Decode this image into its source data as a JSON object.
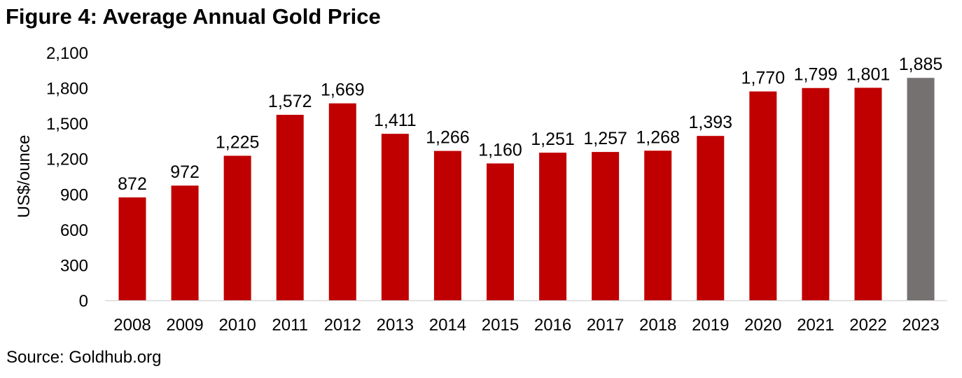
{
  "title": "Figure 4: Average Annual Gold Price",
  "source": "Source: Goldhub.org",
  "chart_data": {
    "type": "bar",
    "title": "Figure 4: Average Annual Gold Price",
    "xlabel": "",
    "ylabel": "US$/ounce",
    "ylim": [
      0,
      2100
    ],
    "yticks": [
      0,
      300,
      600,
      900,
      1200,
      1500,
      1800,
      2100
    ],
    "ytick_labels": [
      "0",
      "300",
      "600",
      "900",
      "1,200",
      "1,500",
      "1,800",
      "2,100"
    ],
    "grid": false,
    "categories": [
      "2008",
      "2009",
      "2010",
      "2011",
      "2012",
      "2013",
      "2014",
      "2015",
      "2016",
      "2017",
      "2018",
      "2019",
      "2020",
      "2021",
      "2022",
      "2023"
    ],
    "values": [
      872,
      972,
      1225,
      1572,
      1669,
      1411,
      1266,
      1160,
      1251,
      1257,
      1268,
      1393,
      1770,
      1799,
      1801,
      1885
    ],
    "data_labels": [
      "872",
      "972",
      "1,225",
      "1,572",
      "1,669",
      "1,411",
      "1,266",
      "1,160",
      "1,251",
      "1,257",
      "1,268",
      "1,393",
      "1,770",
      "1,799",
      "1,801",
      "1,885"
    ],
    "colors": [
      "#c00000",
      "#c00000",
      "#c00000",
      "#c00000",
      "#c00000",
      "#c00000",
      "#c00000",
      "#c00000",
      "#c00000",
      "#c00000",
      "#c00000",
      "#c00000",
      "#c00000",
      "#c00000",
      "#c00000",
      "#767171"
    ],
    "axis_color": "#d9d9d9"
  }
}
